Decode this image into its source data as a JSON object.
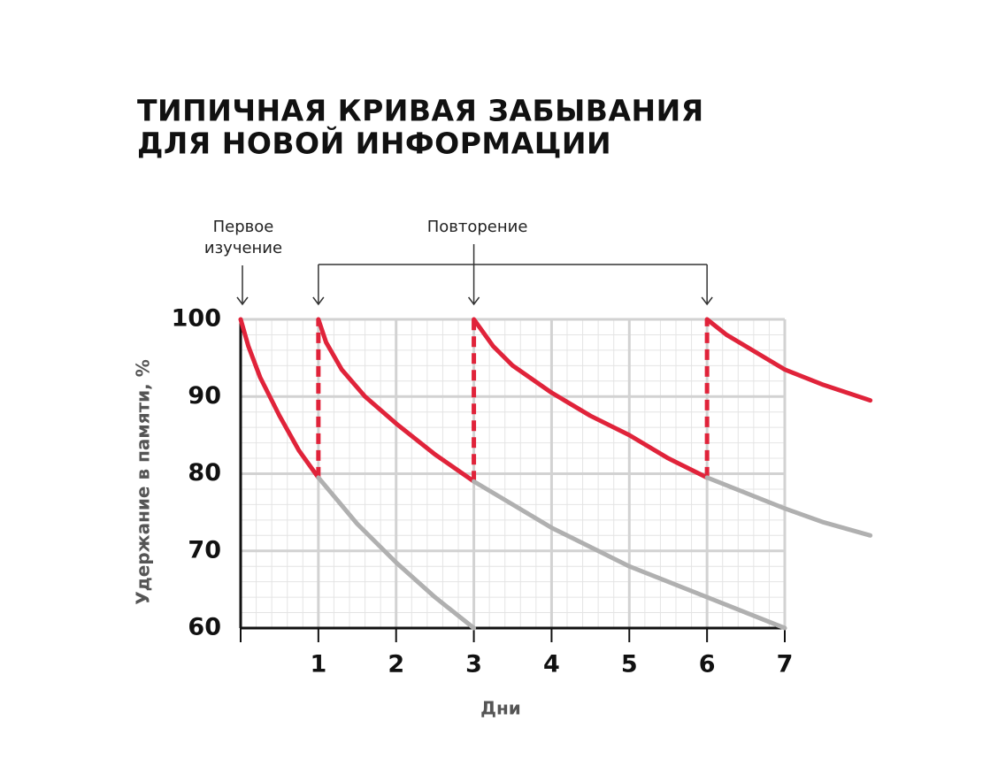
{
  "chart_data": {
    "type": "line",
    "title": [
      "ТИПИЧНАЯ КРИВАЯ ЗАБЫВАНИЯ",
      "ДЛЯ НОВОЙ ИНФОРМАЦИИ"
    ],
    "x_label": "Дни",
    "y_label": "Удержание в памяти, %",
    "xlim": [
      0,
      7
    ],
    "ylim": [
      60,
      100
    ],
    "xticks": [
      1,
      2,
      3,
      4,
      5,
      6,
      7
    ],
    "yticks": [
      60,
      70,
      80,
      90,
      100
    ],
    "grid": true,
    "minor_grid": {
      "x": 0.2,
      "y": 2
    },
    "annotations": [
      {
        "text": [
          "Первое",
          "изучение"
        ],
        "x": [
          0
        ]
      },
      {
        "text": [
          "Повторение"
        ],
        "x": [
          1,
          3,
          6
        ]
      }
    ],
    "series": [
      {
        "color": "#e0233a",
        "style": "solid",
        "x": [
          0,
          0.1,
          0.25,
          0.5,
          0.75,
          1
        ],
        "values": [
          100,
          96.5,
          92.5,
          87.5,
          83,
          79.5
        ]
      },
      {
        "color": "#e0233a",
        "style": "solid",
        "x": [
          1,
          1.1,
          1.3,
          1.6,
          2,
          2.5,
          3
        ],
        "values": [
          100,
          97,
          93.5,
          90,
          86.5,
          82.5,
          79
        ]
      },
      {
        "color": "#e0233a",
        "style": "solid",
        "x": [
          3,
          3.25,
          3.5,
          4,
          4.5,
          5,
          5.5,
          6
        ],
        "values": [
          100,
          96.5,
          94,
          90.5,
          87.5,
          85,
          82,
          79.5
        ]
      },
      {
        "color": "#e0233a",
        "style": "solid",
        "x": [
          6,
          6.25,
          6.5,
          7,
          7.5,
          8.1
        ],
        "values": [
          100,
          98,
          96.5,
          93.5,
          91.5,
          89.5
        ]
      },
      {
        "color": "#e0233a",
        "style": "dashed",
        "x": [
          1,
          1,
          1,
          3,
          3,
          3,
          6,
          6
        ],
        "values": [
          79.5,
          100,
          null,
          79,
          100,
          null,
          79.5,
          100
        ]
      },
      {
        "color": "#b0b0b0",
        "style": "solid",
        "x": [
          1,
          1.5,
          2,
          2.5,
          3
        ],
        "values": [
          79.5,
          73.5,
          68.5,
          64,
          60
        ]
      },
      {
        "color": "#b0b0b0",
        "style": "solid",
        "x": [
          3,
          3.5,
          4,
          5,
          6,
          7
        ],
        "values": [
          79,
          76,
          73,
          68,
          64,
          60
        ]
      },
      {
        "color": "#b0b0b0",
        "style": "solid",
        "x": [
          6,
          6.5,
          7,
          7.5,
          8.1
        ],
        "values": [
          79.5,
          77.5,
          75.5,
          73.7,
          72
        ]
      }
    ]
  }
}
